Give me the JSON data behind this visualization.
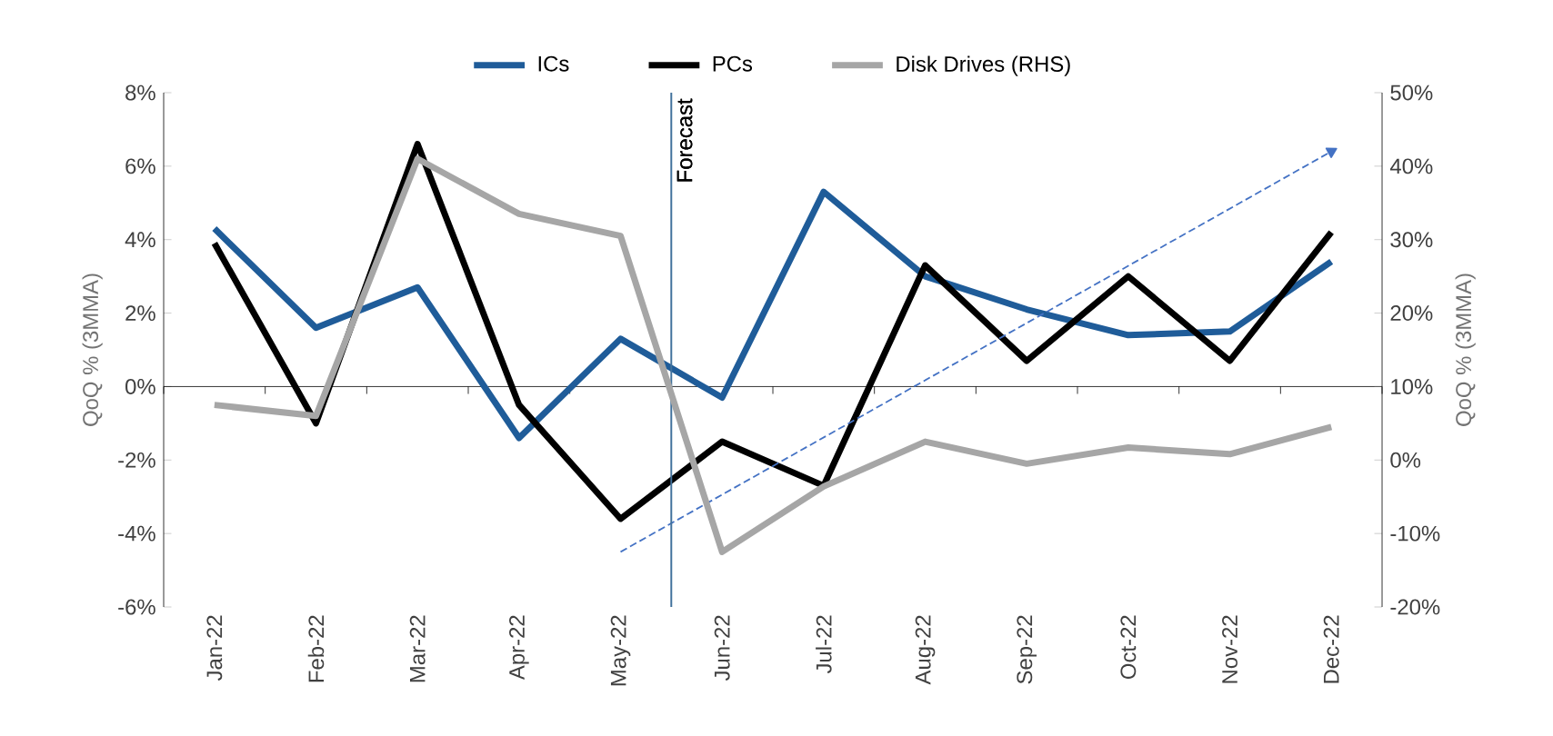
{
  "chart_data": {
    "type": "line",
    "categories": [
      "Jan-22",
      "Feb-22",
      "Mar-22",
      "Apr-22",
      "May-22",
      "Jun-22",
      "Jul-22",
      "Aug-22",
      "Sep-22",
      "Oct-22",
      "Nov-22",
      "Dec-22"
    ],
    "series": [
      {
        "name": "ICs",
        "color": "#1f5c99",
        "values": [
          4.3,
          1.6,
          2.7,
          -1.4,
          1.3,
          -0.3,
          5.3,
          3.0,
          2.1,
          1.4,
          1.5,
          3.4
        ]
      },
      {
        "name": "PCs",
        "color": "#000000",
        "values": [
          3.9,
          -1.0,
          6.6,
          -0.5,
          -3.6,
          -1.5,
          -2.7,
          3.3,
          0.7,
          3.0,
          0.7,
          4.2
        ]
      },
      {
        "name": "Disk Drives (RHS)",
        "color": "#a6a6a6",
        "axis": "y2",
        "values": [
          7.5,
          6,
          41,
          33.5,
          30.5,
          -12.5,
          -3.6,
          2.5,
          -0.5,
          1.7,
          0.8,
          4.5
        ]
      },
      {
        "type": "line",
        "color": "#4472c4",
        "line_style": "dashed",
        "marker": "triangle",
        "values": [
          null,
          null,
          null,
          null,
          -4.5,
          null,
          null,
          null,
          null,
          null,
          null,
          6.4
        ]
      }
    ],
    "ylabel": "QoQ % (3MMA)",
    "y2label": "QoQ % (3MMA)",
    "ylim": [
      -6,
      8
    ],
    "yticks": [
      {
        "value": -6,
        "label": "-6%"
      },
      {
        "value": -4,
        "label": "-4%"
      },
      {
        "value": -2,
        "label": "-2%"
      },
      {
        "value": 0,
        "label": "0%"
      },
      {
        "value": 2,
        "label": "2%"
      },
      {
        "value": 4,
        "label": "4%"
      },
      {
        "value": 6,
        "label": "6%"
      },
      {
        "value": 8,
        "label": "8%"
      }
    ],
    "y2lim": [
      -20,
      50
    ],
    "y2ticks": [
      {
        "value": -20,
        "label": "-20%"
      },
      {
        "value": -10,
        "label": "-10%"
      },
      {
        "value": 0,
        "label": "0%"
      },
      {
        "value": 10,
        "label": "10%"
      },
      {
        "value": 20,
        "label": "20%"
      },
      {
        "value": 30,
        "label": "30%"
      },
      {
        "value": 40,
        "label": "40%"
      },
      {
        "value": 50,
        "label": "50%"
      }
    ],
    "annotations": [
      "Forecast"
    ],
    "legend": "top",
    "grid": false,
    "marker": "none"
  }
}
